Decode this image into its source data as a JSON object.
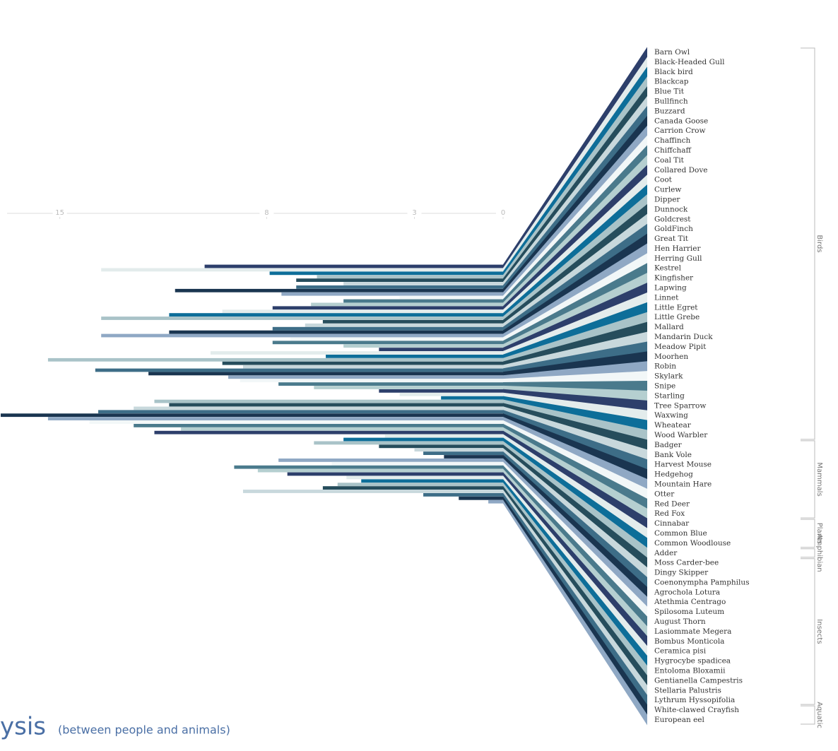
{
  "chart_data": {
    "type": "fan-bar",
    "title": "ysis",
    "subtitle": "(between people and animals)",
    "categories": [
      "Barn Owl",
      "Black-Headed Gull",
      "Black bird",
      "Blackcap",
      "Blue Tit",
      "Bullfinch",
      "Buzzard",
      "Canada Goose",
      "Carrion Crow",
      "Chaffinch",
      "Chiffchaff",
      "Coal Tit",
      "Collared Dove",
      "Coot",
      "Curlew",
      "Dipper",
      "Dunnock",
      "Goldcrest",
      "GoldFinch",
      "Great Tit",
      "Hen Harrier",
      "Herring Gull",
      "Kestrel",
      "Kingfisher",
      "Lapwing",
      "Linnet",
      "Little Egret",
      "Little Grebe",
      "Mallard",
      "Mandarin Duck",
      "Meadow Pipit",
      "Moorhen",
      "Robin",
      "Skylark",
      "Snipe",
      "Starling",
      "Tree Sparrow",
      "Waxwing",
      "Wheatear",
      "Wood Warbler",
      "Badger",
      "Bank Vole",
      "Harvest Mouse",
      "Hedgehog",
      "Mountain Hare",
      "Otter",
      "Red Deer",
      "Red Fox",
      "Cinnabar",
      "Common Blue",
      "Common Woodlouse",
      "Adder",
      "Moss Carder-bee",
      "Dingy Skipper",
      "Coenonympha Pamphilus",
      "Agrochola Lotura",
      "Atethmia Centrago",
      "Spilosoma Luteum",
      "August Thorn",
      "Lasiommate Megera",
      "Bombus Monticola",
      "Ceramica pisi",
      "Hygrocybe spadicea",
      "Entoloma Bloxamii",
      "Gentianella Campestris",
      "Stellaria Palustris",
      "Lythrum Hyssopifolia",
      "White-clawed Crayfish",
      "European eel"
    ],
    "category_groups": [
      "Birds",
      "Birds",
      "Birds",
      "Birds",
      "Birds",
      "Birds",
      "Birds",
      "Birds",
      "Birds",
      "Birds",
      "Birds",
      "Birds",
      "Birds",
      "Birds",
      "Birds",
      "Birds",
      "Birds",
      "Birds",
      "Birds",
      "Birds",
      "Birds",
      "Birds",
      "Birds",
      "Birds",
      "Birds",
      "Birds",
      "Birds",
      "Birds",
      "Birds",
      "Birds",
      "Birds",
      "Birds",
      "Birds",
      "Birds",
      "Birds",
      "Birds",
      "Birds",
      "Birds",
      "Birds",
      "Birds",
      "Mammals",
      "Mammals",
      "Mammals",
      "Mammals",
      "Mammals",
      "Mammals",
      "Mammals",
      "Mammals",
      "Plants",
      "Plants",
      "Plants",
      "Amphibian",
      "Insects",
      "Insects",
      "Insects",
      "Insects",
      "Insects",
      "Insects",
      "Insects",
      "Insects",
      "Insects",
      "Insects",
      "Insects",
      "Insects",
      "Insects",
      "Insects",
      "Insects",
      "Aquatic",
      "Aquatic"
    ],
    "values": [
      10.1,
      13.6,
      7.9,
      6.3,
      7.0,
      5.4,
      7.0,
      11.1,
      7.5,
      3.5,
      5.4,
      6.5,
      7.8,
      9.5,
      11.3,
      13.6,
      6.1,
      6.7,
      7.8,
      11.3,
      13.6,
      7.2,
      7.8,
      5.4,
      4.2,
      9.9,
      6.0,
      15.4,
      9.5,
      8.8,
      13.8,
      12.0,
      9.3,
      8.9,
      7.6,
      6.4,
      4.2,
      3.5,
      2.1,
      11.8,
      11.3,
      12.5,
      13.7,
      17.0,
      15.4,
      14.0,
      12.5,
      10.9,
      11.8,
      4.0,
      5.4,
      6.4,
      4.2,
      3.0,
      2.7,
      2.0,
      7.6,
      5.8,
      9.1,
      8.3,
      7.3,
      5.3,
      4.8,
      5.6,
      6.1,
      8.8,
      2.7,
      1.5,
      0.5
    ],
    "xlim": [
      0,
      17
    ],
    "xticks": [
      15,
      8,
      3,
      0
    ],
    "colors": [
      "#2d3f6b",
      "#e3ecec",
      "#0d6e99",
      "#a9c3c8",
      "#264d5c",
      "#c8d8dc",
      "#3d6d87",
      "#1a3550",
      "#8fa8c4",
      "#f2f7f8",
      "#4a7a8c",
      "#b5cfd0"
    ]
  }
}
